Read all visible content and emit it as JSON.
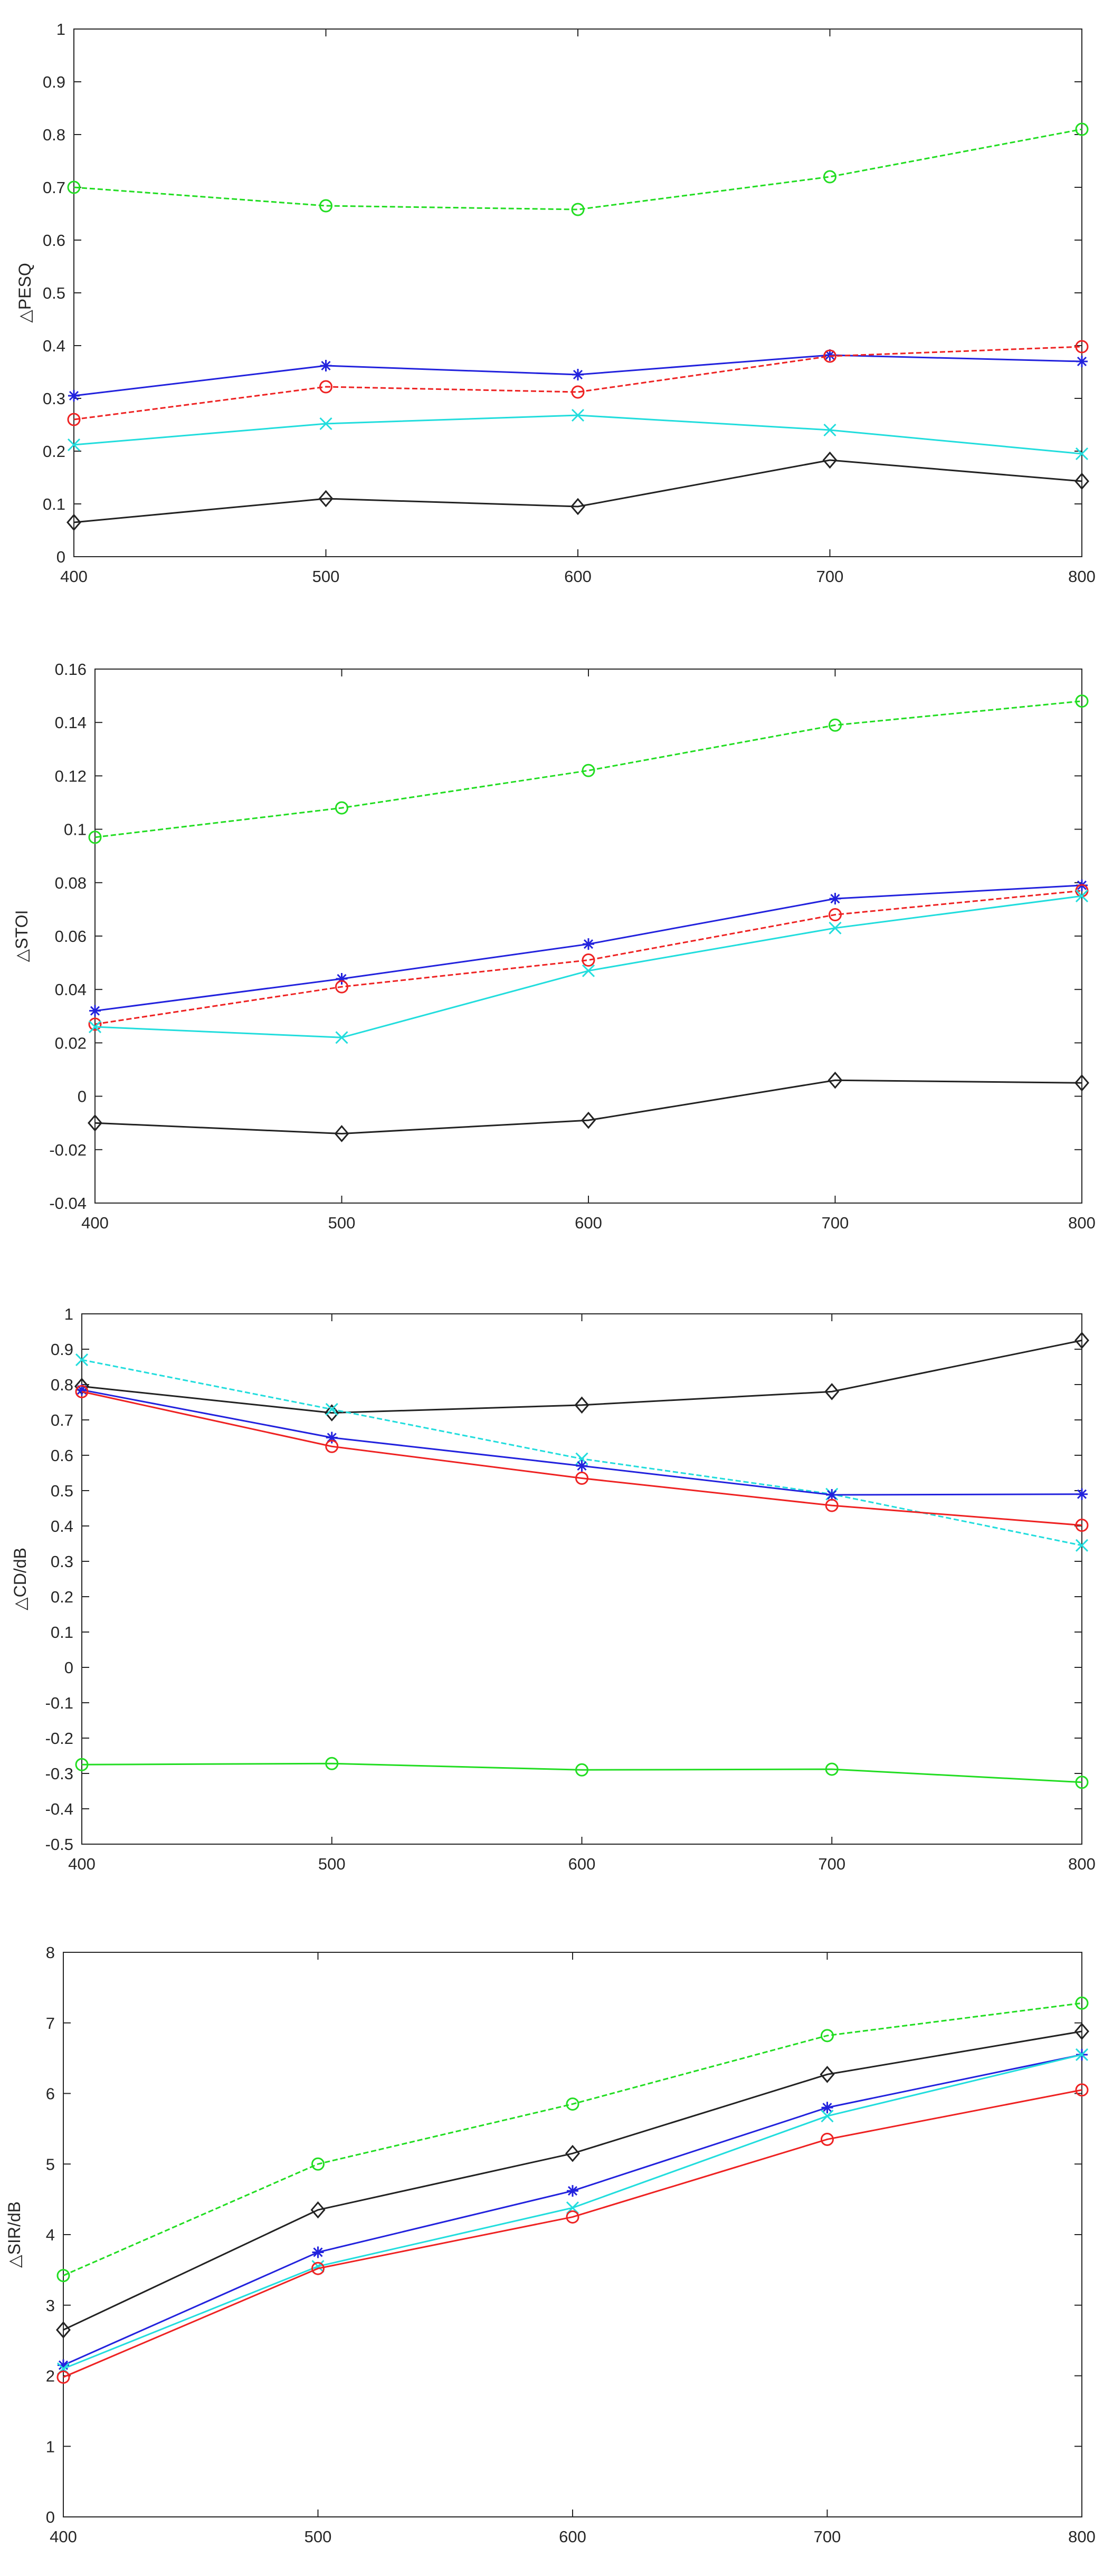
{
  "chart_data": [
    {
      "type": "line",
      "title": "",
      "xlabel": "",
      "ylabel": "△PESQ",
      "x": [
        400,
        500,
        600,
        700,
        800
      ],
      "xlim": [
        400,
        800
      ],
      "ylim": [
        0,
        1
      ],
      "yticks": [
        0,
        0.1,
        0.2,
        0.3,
        0.4,
        0.5,
        0.6,
        0.7,
        0.8,
        0.9,
        1
      ],
      "ytick_labels": [
        "0",
        "0.1",
        "0.2",
        "0.3",
        "0.4",
        "0.5",
        "0.6",
        "0.7",
        "0.8",
        "0.9",
        "1"
      ],
      "grid": false,
      "series": [
        {
          "name": "green",
          "color": "#22dd22",
          "marker": "circle",
          "dashed": true,
          "values": [
            0.7,
            0.665,
            0.658,
            0.72,
            0.81
          ]
        },
        {
          "name": "blue",
          "color": "#2222dd",
          "marker": "star",
          "dashed": false,
          "values": [
            0.305,
            0.362,
            0.345,
            0.382,
            0.37
          ]
        },
        {
          "name": "red",
          "color": "#ee2222",
          "marker": "circle",
          "dashed": true,
          "values": [
            0.26,
            0.322,
            0.312,
            0.38,
            0.398
          ]
        },
        {
          "name": "cyan",
          "color": "#22dddd",
          "marker": "x",
          "dashed": false,
          "values": [
            0.212,
            0.252,
            0.268,
            0.24,
            0.195
          ]
        },
        {
          "name": "black",
          "color": "#222222",
          "marker": "diamond",
          "dashed": false,
          "values": [
            0.065,
            0.11,
            0.095,
            0.183,
            0.143
          ]
        }
      ]
    },
    {
      "type": "line",
      "title": "",
      "xlabel": "",
      "ylabel": "△STOI",
      "x": [
        400,
        500,
        600,
        700,
        800
      ],
      "xlim": [
        400,
        800
      ],
      "ylim": [
        -0.04,
        0.16
      ],
      "yticks": [
        -0.04,
        -0.02,
        0,
        0.02,
        0.04,
        0.06,
        0.08,
        0.1,
        0.12,
        0.14,
        0.16
      ],
      "ytick_labels": [
        "-0.04",
        "-0.02",
        "0",
        "0.02",
        "0.04",
        "0.06",
        "0.08",
        "0.1",
        "0.12",
        "0.14",
        "0.16"
      ],
      "grid": false,
      "series": [
        {
          "name": "green",
          "color": "#22dd22",
          "marker": "circle",
          "dashed": true,
          "values": [
            0.097,
            0.108,
            0.122,
            0.139,
            0.148
          ]
        },
        {
          "name": "blue",
          "color": "#2222dd",
          "marker": "star",
          "dashed": false,
          "values": [
            0.032,
            0.044,
            0.057,
            0.074,
            0.079
          ]
        },
        {
          "name": "red",
          "color": "#ee2222",
          "marker": "circle",
          "dashed": true,
          "values": [
            0.027,
            0.041,
            0.051,
            0.068,
            0.077
          ]
        },
        {
          "name": "cyan",
          "color": "#22dddd",
          "marker": "x",
          "dashed": false,
          "values": [
            0.026,
            0.022,
            0.047,
            0.063,
            0.075
          ]
        },
        {
          "name": "black",
          "color": "#222222",
          "marker": "diamond",
          "dashed": false,
          "values": [
            -0.01,
            -0.014,
            -0.009,
            0.006,
            0.005
          ]
        }
      ]
    },
    {
      "type": "line",
      "title": "",
      "xlabel": "",
      "ylabel": "△CD/dB",
      "x": [
        400,
        500,
        600,
        700,
        800
      ],
      "xlim": [
        400,
        800
      ],
      "ylim": [
        -0.5,
        1
      ],
      "yticks": [
        -0.5,
        -0.4,
        -0.3,
        -0.2,
        -0.1,
        0,
        0.1,
        0.2,
        0.3,
        0.4,
        0.5,
        0.6,
        0.7,
        0.8,
        0.9,
        1
      ],
      "ytick_labels": [
        "-0.5",
        "-0.4",
        "-0.3",
        "-0.2",
        "-0.1",
        "0",
        "0.1",
        "0.2",
        "0.3",
        "0.4",
        "0.5",
        "0.6",
        "0.7",
        "0.8",
        "0.9",
        "1"
      ],
      "grid": false,
      "series": [
        {
          "name": "black",
          "color": "#222222",
          "marker": "diamond",
          "dashed": false,
          "values": [
            0.795,
            0.72,
            0.742,
            0.78,
            0.925
          ]
        },
        {
          "name": "cyan",
          "color": "#22dddd",
          "marker": "x",
          "dashed": true,
          "values": [
            0.87,
            0.73,
            0.59,
            0.49,
            0.345
          ]
        },
        {
          "name": "blue",
          "color": "#2222dd",
          "marker": "star",
          "dashed": false,
          "values": [
            0.785,
            0.65,
            0.57,
            0.488,
            0.49
          ]
        },
        {
          "name": "red",
          "color": "#ee2222",
          "marker": "circle",
          "dashed": false,
          "values": [
            0.78,
            0.625,
            0.535,
            0.458,
            0.402
          ]
        },
        {
          "name": "green",
          "color": "#22dd22",
          "marker": "circle",
          "dashed": false,
          "values": [
            -0.275,
            -0.272,
            -0.29,
            -0.288,
            -0.325
          ]
        }
      ]
    },
    {
      "type": "line",
      "title": "",
      "xlabel": "",
      "ylabel": "△SIR/dB",
      "x": [
        400,
        500,
        600,
        700,
        800
      ],
      "xlim": [
        400,
        800
      ],
      "ylim": [
        0,
        8
      ],
      "yticks": [
        0,
        1,
        2,
        3,
        4,
        5,
        6,
        7,
        8
      ],
      "ytick_labels": [
        "0",
        "1",
        "2",
        "3",
        "4",
        "5",
        "6",
        "7",
        "8"
      ],
      "grid": false,
      "series": [
        {
          "name": "green",
          "color": "#22dd22",
          "marker": "circle",
          "dashed": true,
          "values": [
            3.42,
            5.0,
            5.85,
            6.82,
            7.28
          ]
        },
        {
          "name": "black",
          "color": "#222222",
          "marker": "diamond",
          "dashed": false,
          "values": [
            2.65,
            4.35,
            5.15,
            6.27,
            6.88
          ]
        },
        {
          "name": "blue",
          "color": "#2222dd",
          "marker": "star",
          "dashed": false,
          "values": [
            2.15,
            3.75,
            4.62,
            5.8,
            6.55
          ]
        },
        {
          "name": "cyan",
          "color": "#22dddd",
          "marker": "x",
          "dashed": false,
          "values": [
            2.1,
            3.55,
            4.38,
            5.68,
            6.55
          ]
        },
        {
          "name": "red",
          "color": "#ee2222",
          "marker": "circle",
          "dashed": false,
          "values": [
            1.98,
            3.52,
            4.25,
            5.35,
            6.05
          ]
        }
      ]
    }
  ]
}
